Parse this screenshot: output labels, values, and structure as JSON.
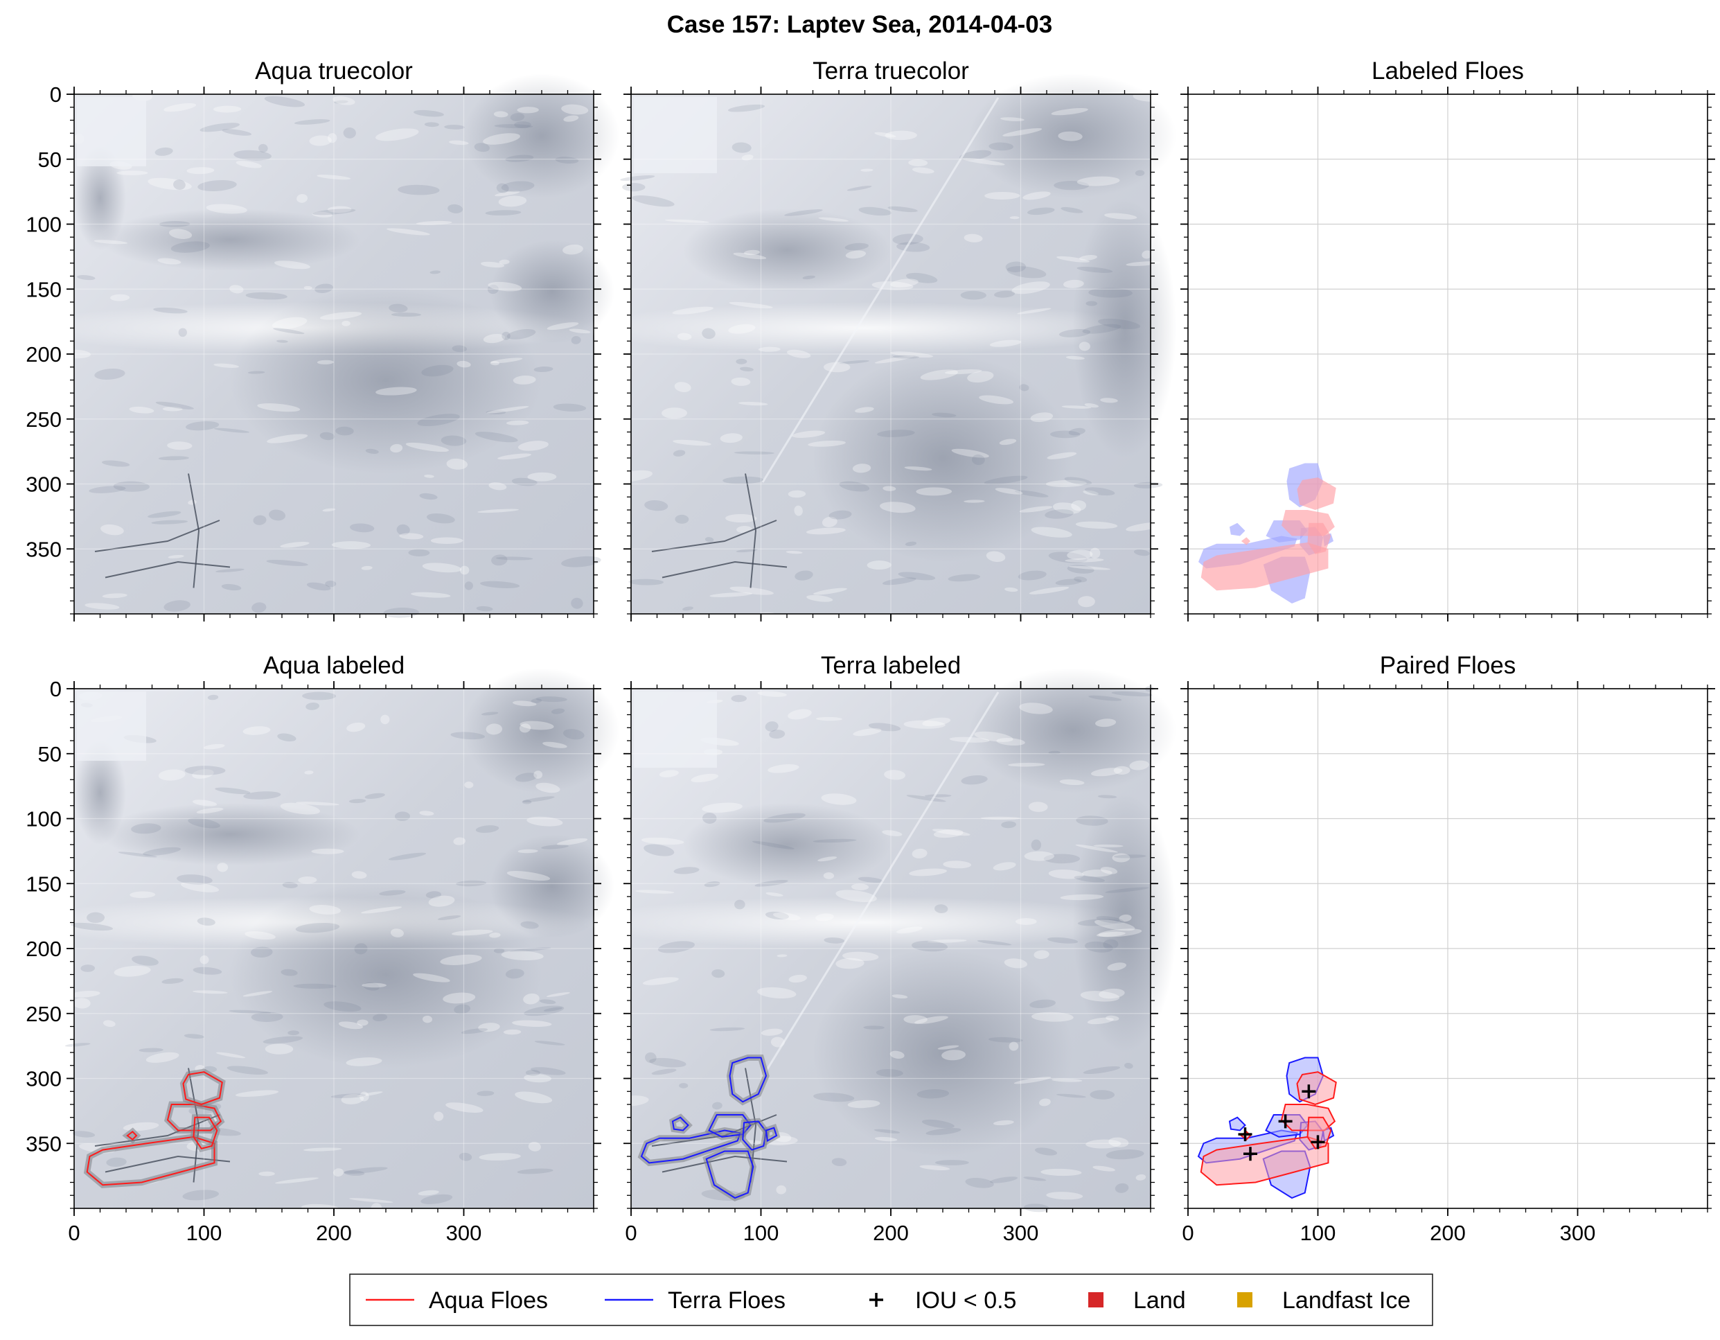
{
  "figure_title": "Case 157: Laptev Sea, 2014-04-03",
  "colors": {
    "aqua": "#ff1a1a",
    "terra": "#1a1aff",
    "aqua_fill": "#ff9fa6",
    "terra_fill": "#9fa6ff",
    "land": "#d62728",
    "landfast": "#d8a200",
    "grid": "#d0d0d0",
    "axis": "#000000"
  },
  "chart_data": [
    {
      "type": "image",
      "id": "aqua-truecolor",
      "title": "Aqua truecolor",
      "xlim": [
        0,
        400
      ],
      "ylim": [
        400,
        0
      ],
      "xticks": [
        0,
        100,
        200,
        300
      ],
      "yticks": [
        0,
        50,
        100,
        150,
        200,
        250,
        300,
        350
      ],
      "floes": []
    },
    {
      "type": "image",
      "id": "terra-truecolor",
      "title": "Terra truecolor",
      "xlim": [
        0,
        400
      ],
      "ylim": [
        400,
        0
      ],
      "xticks": [
        0,
        100,
        200,
        300
      ],
      "yticks": [
        0,
        50,
        100,
        150,
        200,
        250,
        300,
        350
      ],
      "floes": []
    },
    {
      "type": "labeled-floes",
      "id": "labeled-floes",
      "title": "Labeled Floes",
      "xlim": [
        0,
        400
      ],
      "ylim": [
        400,
        0
      ],
      "xticks": [
        0,
        100,
        200,
        300
      ],
      "yticks": [
        0,
        50,
        100,
        150,
        200,
        250,
        300,
        350
      ],
      "floes": [
        "aqua",
        "terra"
      ]
    },
    {
      "type": "image",
      "id": "aqua-labeled",
      "title": "Aqua labeled",
      "xlim": [
        0,
        400
      ],
      "ylim": [
        400,
        0
      ],
      "xticks": [
        0,
        100,
        200,
        300
      ],
      "yticks": [
        0,
        50,
        100,
        150,
        200,
        250,
        300,
        350
      ],
      "floes": [
        "aqua"
      ]
    },
    {
      "type": "image",
      "id": "terra-labeled",
      "title": "Terra labeled",
      "xlim": [
        0,
        400
      ],
      "ylim": [
        400,
        0
      ],
      "xticks": [
        0,
        100,
        200,
        300
      ],
      "yticks": [
        0,
        50,
        100,
        150,
        200,
        250,
        300,
        350
      ],
      "floes": [
        "terra"
      ]
    },
    {
      "type": "paired-floes",
      "id": "paired-floes",
      "title": "Paired Floes",
      "xlim": [
        0,
        400
      ],
      "ylim": [
        400,
        0
      ],
      "xticks": [
        0,
        100,
        200,
        300
      ],
      "yticks": [
        0,
        50,
        100,
        150,
        200,
        250,
        300,
        350
      ],
      "floes": [
        "aqua",
        "terra"
      ],
      "iou_markers": [
        [
          44,
          343
        ],
        [
          48,
          358
        ],
        [
          75,
          333
        ],
        [
          93,
          310
        ],
        [
          100,
          349
        ]
      ]
    }
  ],
  "floe_outlines": {
    "aqua": [
      [
        [
          12,
          360
        ],
        [
          10,
          372
        ],
        [
          22,
          382
        ],
        [
          52,
          380
        ],
        [
          82,
          372
        ],
        [
          108,
          365
        ],
        [
          108,
          350
        ],
        [
          92,
          345
        ],
        [
          56,
          350
        ],
        [
          22,
          355
        ]
      ],
      [
        [
          75,
          320
        ],
        [
          72,
          332
        ],
        [
          80,
          340
        ],
        [
          105,
          340
        ],
        [
          113,
          333
        ],
        [
          108,
          323
        ],
        [
          92,
          320
        ]
      ],
      [
        [
          84,
          304
        ],
        [
          88,
          297
        ],
        [
          100,
          295
        ],
        [
          114,
          303
        ],
        [
          112,
          315
        ],
        [
          98,
          320
        ],
        [
          86,
          316
        ]
      ],
      [
        [
          93,
          330
        ],
        [
          92,
          345
        ],
        [
          98,
          354
        ],
        [
          106,
          352
        ],
        [
          110,
          340
        ],
        [
          104,
          330
        ]
      ],
      [
        [
          41,
          344
        ],
        [
          45,
          341
        ],
        [
          48,
          344
        ],
        [
          45,
          347
        ]
      ]
    ],
    "terra": [
      [
        [
          12,
          350
        ],
        [
          8,
          360
        ],
        [
          14,
          365
        ],
        [
          40,
          362
        ],
        [
          70,
          352
        ],
        [
          82,
          348
        ],
        [
          84,
          342
        ],
        [
          72,
          340
        ],
        [
          45,
          346
        ],
        [
          22,
          346
        ]
      ],
      [
        [
          66,
          328
        ],
        [
          60,
          340
        ],
        [
          70,
          345
        ],
        [
          86,
          343
        ],
        [
          92,
          336
        ],
        [
          86,
          328
        ]
      ],
      [
        [
          76,
          298
        ],
        [
          78,
          288
        ],
        [
          90,
          284
        ],
        [
          100,
          284
        ],
        [
          104,
          298
        ],
        [
          98,
          312
        ],
        [
          86,
          318
        ],
        [
          78,
          312
        ]
      ],
      [
        [
          58,
          362
        ],
        [
          64,
          382
        ],
        [
          80,
          392
        ],
        [
          90,
          388
        ],
        [
          94,
          368
        ],
        [
          90,
          356
        ],
        [
          72,
          356
        ]
      ],
      [
        [
          87,
          334
        ],
        [
          86,
          347
        ],
        [
          93,
          355
        ],
        [
          102,
          352
        ],
        [
          104,
          341
        ],
        [
          98,
          333
        ]
      ],
      [
        [
          32,
          333
        ],
        [
          38,
          330
        ],
        [
          44,
          336
        ],
        [
          40,
          340
        ],
        [
          33,
          339
        ]
      ],
      [
        [
          104,
          340
        ],
        [
          110,
          338
        ],
        [
          112,
          344
        ],
        [
          105,
          348
        ]
      ]
    ]
  },
  "legend": {
    "items": [
      {
        "label": "Aqua Floes",
        "kind": "line",
        "color": "#ff1a1a"
      },
      {
        "label": "Terra Floes",
        "kind": "line",
        "color": "#1a1aff"
      },
      {
        "label": "IOU < 0.5",
        "kind": "plus",
        "color": "#000000"
      },
      {
        "label": "Land",
        "kind": "square",
        "color": "#d62728"
      },
      {
        "label": "Landfast Ice",
        "kind": "square",
        "color": "#d8a200"
      }
    ]
  }
}
